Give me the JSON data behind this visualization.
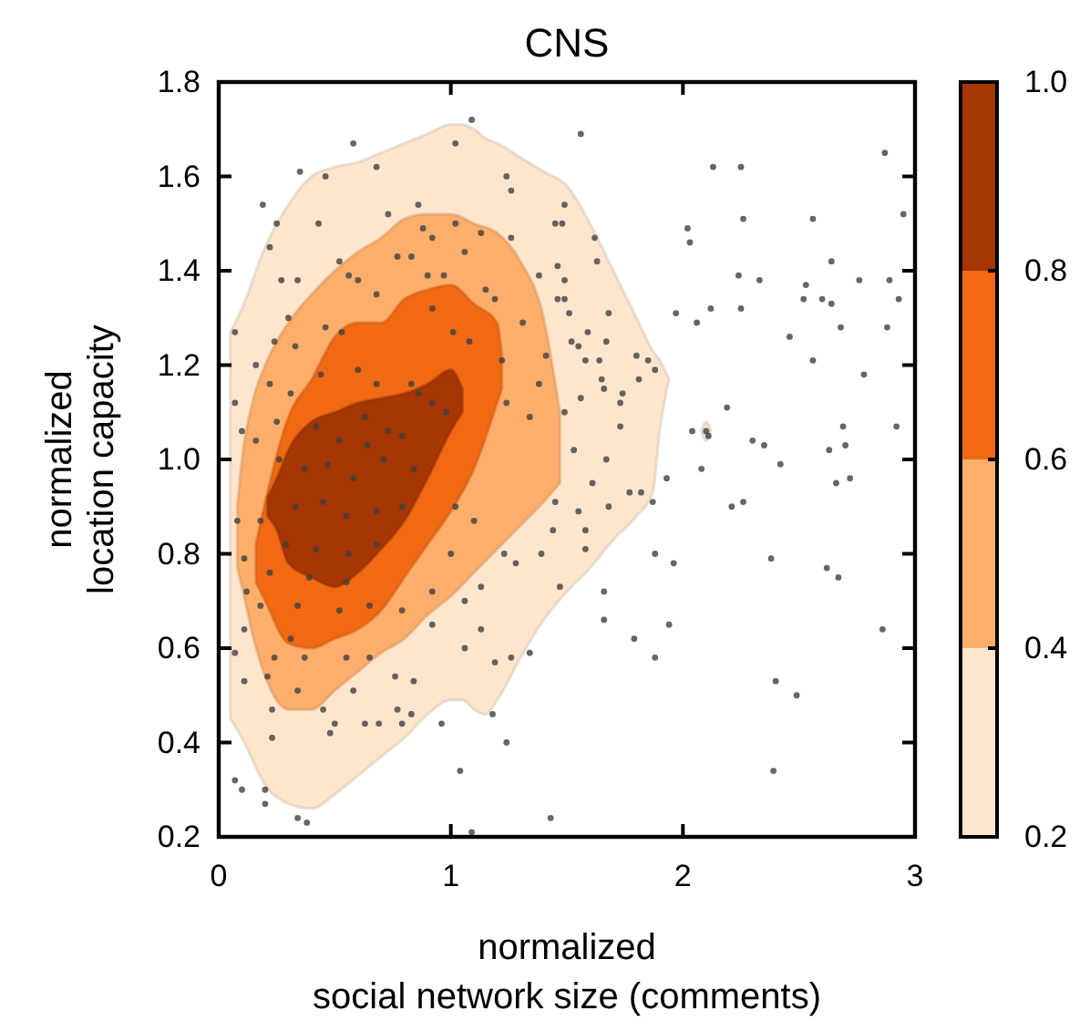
{
  "chart_data": {
    "type": "scatter",
    "title": "CNS",
    "xlabel": "normalized\nsocial network size (comments)",
    "ylabel": "normalized\nlocation capacity",
    "xlim": [
      0,
      3
    ],
    "ylim": [
      0.2,
      1.8
    ],
    "xticks": [
      0,
      1,
      2,
      3
    ],
    "yticks": [
      0.2,
      0.4,
      0.6,
      0.8,
      {
        "value": 1,
        "label": "1.0"
      },
      1.2,
      1.4,
      1.6,
      1.8
    ],
    "clim": [
      0.2,
      1
    ],
    "cticks": [
      0.2,
      0.4,
      0.6,
      0.8,
      {
        "value": 1,
        "label": "1.0"
      }
    ],
    "marker": "circle",
    "series": [
      {
        "type": "area",
        "color": "#fee6ce",
        "x": [
          0.05,
          0.1,
          0.2,
          0.3,
          0.4,
          0.5,
          0.6,
          0.7,
          0.8,
          0.9,
          1.0,
          1.05,
          1.1,
          1.15,
          1.2,
          1.3,
          1.4,
          1.5,
          1.6,
          1.7,
          1.8,
          1.87,
          1.9,
          1.94
        ],
        "values": [
          null,
          null,
          null,
          null,
          null,
          null,
          null,
          null,
          null,
          null,
          null,
          null,
          null,
          null,
          null,
          null,
          null,
          null,
          null,
          null,
          null,
          null,
          null,
          null
        ],
        "lower": [
          0.45,
          0.41,
          0.31,
          0.27,
          0.26,
          0.29,
          0.33,
          0.37,
          0.41,
          0.46,
          0.49,
          0.49,
          0.47,
          0.46,
          0.49,
          0.58,
          0.66,
          0.72,
          0.77,
          0.83,
          0.88,
          0.93,
          1.06,
          1.17
        ],
        "upper": [
          1.27,
          1.32,
          1.45,
          1.54,
          1.6,
          1.62,
          1.63,
          1.65,
          1.67,
          1.69,
          1.71,
          1.71,
          1.7,
          1.68,
          1.67,
          1.64,
          1.61,
          1.58,
          1.5,
          1.4,
          1.3,
          1.23,
          1.21,
          1.17
        ]
      },
      {
        "type": "area",
        "color": "#fee6ce",
        "x": [
          2.08,
          2.1,
          2.12
        ],
        "values": [
          null,
          null,
          null
        ],
        "lower": [
          1.06,
          1.04,
          1.06
        ],
        "upper": [
          1.06,
          1.08,
          1.06
        ]
      },
      {
        "type": "area",
        "color": "#fdae6b",
        "x": [
          0.08,
          0.1,
          0.15,
          0.2,
          0.3,
          0.4,
          0.5,
          0.6,
          0.7,
          0.8,
          0.9,
          1.0,
          1.1,
          1.2,
          1.3,
          1.4,
          1.47
        ],
        "values": [
          null,
          null,
          null,
          null,
          null,
          null,
          null,
          null,
          null,
          null,
          null,
          null,
          null,
          null,
          null,
          null,
          null
        ],
        "lower": [
          0.77,
          0.73,
          0.62,
          0.54,
          0.47,
          0.47,
          0.51,
          0.55,
          0.59,
          0.62,
          0.67,
          0.71,
          0.76,
          0.81,
          0.86,
          0.91,
          0.95
        ],
        "upper": [
          0.9,
          1.0,
          1.13,
          1.2,
          1.29,
          1.35,
          1.4,
          1.44,
          1.47,
          1.51,
          1.52,
          1.52,
          1.5,
          1.48,
          1.42,
          1.3,
          1.1
        ]
      },
      {
        "type": "area",
        "color": "#f16913",
        "x": [
          0.16,
          0.2,
          0.3,
          0.4,
          0.5,
          0.6,
          0.7,
          0.8,
          0.9,
          1.0,
          1.1,
          1.2,
          1.22
        ],
        "values": [
          null,
          null,
          null,
          null,
          null,
          null,
          null,
          null,
          null,
          null,
          null,
          null,
          null
        ],
        "lower": [
          0.74,
          0.7,
          0.61,
          0.6,
          0.62,
          0.64,
          0.68,
          0.75,
          0.82,
          0.89,
          0.98,
          1.12,
          1.15
        ],
        "upper": [
          0.82,
          0.91,
          1.09,
          1.17,
          1.26,
          1.29,
          1.29,
          1.34,
          1.36,
          1.37,
          1.33,
          1.29,
          1.22
        ]
      },
      {
        "type": "area",
        "color": "#a63603",
        "x": [
          0.21,
          0.25,
          0.3,
          0.4,
          0.5,
          0.6,
          0.7,
          0.8,
          0.9,
          1.0,
          1.05
        ],
        "values": [
          null,
          null,
          null,
          null,
          null,
          null,
          null,
          null,
          null,
          null,
          null
        ],
        "lower": [
          0.88,
          0.85,
          0.78,
          0.75,
          0.73,
          0.76,
          0.81,
          0.87,
          0.96,
          1.06,
          1.1
        ],
        "upper": [
          0.92,
          0.96,
          1.02,
          1.08,
          1.1,
          1.12,
          1.13,
          1.14,
          1.16,
          1.19,
          1.15
        ]
      },
      {
        "color": "#404040",
        "x": [
          1.56,
          2.13,
          2.25,
          2.87,
          2.02,
          2.03,
          2.26,
          2.56,
          2.95,
          2.64,
          2.24,
          2.33,
          2.53,
          2.76,
          2.89,
          2.52,
          2.6,
          2.64,
          2.93,
          1.97,
          2.12,
          2.25,
          2.06,
          2.68,
          2.88,
          2.46,
          2.56,
          2.78,
          2.19,
          2.04,
          2.3,
          2.35,
          2.69,
          2.92,
          2.63,
          2.7,
          2.1,
          2.11,
          1.49,
          1.45,
          1.48,
          1.62,
          1.46,
          1.49,
          1.63,
          1.46,
          1.49,
          1.51,
          1.68,
          1.59,
          1.52,
          1.55,
          1.67,
          1.58,
          1.64,
          1.8,
          1.85,
          1.88,
          1.81,
          1.65,
          1.66,
          1.74,
          1.73,
          1.56,
          1.49,
          1.73,
          1.53,
          2.08,
          2.42,
          2.66,
          2.72,
          1.93,
          2.21,
          2.26,
          1.88,
          1.96,
          2.38,
          2.62,
          2.67,
          2.86,
          1.66,
          1.66,
          1.94,
          1.79,
          1.88,
          2.4,
          2.49,
          2.39,
          1.43,
          1.47,
          1.58,
          1.58,
          1.44,
          1.55,
          1.45,
          1.68,
          1.61,
          1.77,
          1.82,
          1.87,
          1.67,
          1.06,
          1.34,
          0.96,
          1.24,
          1.04,
          0.07,
          0.1,
          0.2,
          0.2,
          0.34,
          0.38,
          1.09,
          0.23,
          0.48,
          0.63,
          0.69,
          0.77,
          0.79,
          0.83,
          0.84,
          1.06,
          1.13,
          1.19,
          1.26,
          1.18,
          0.11,
          0.07,
          0.23,
          0.45,
          0.5,
          1.09,
          1.02,
          0.58,
          0.35,
          0.46,
          0.68,
          0.19,
          0.25,
          0.22,
          0.27,
          0.3,
          0.07,
          0.16,
          0.07,
          0.1,
          1.24,
          1.26,
          0.43,
          0.73,
          0.86,
          0.88,
          0.92,
          1.02,
          1.13,
          1.26,
          1.06,
          0.77,
          0.83,
          0.52,
          0.6,
          0.68,
          0.34,
          0.56,
          0.9,
          0.97,
          1.15,
          1.19,
          1.38,
          0.24,
          0.46,
          0.53,
          0.33,
          0.44,
          0.6,
          0.68,
          0.92,
          1.01,
          1.08,
          1.31,
          1.41,
          1.38,
          1.24,
          1.34,
          1.22,
          0.22,
          0.31,
          0.25,
          0.16,
          0.83,
          0.98,
          0.86,
          0.92,
          0.63,
          0.73,
          0.42,
          0.52,
          0.64,
          0.79,
          0.26,
          0.37,
          0.47,
          0.58,
          0.71,
          0.84,
          0.33,
          0.45,
          0.55,
          0.68,
          0.79,
          0.29,
          0.42,
          0.56,
          0.68,
          0.22,
          0.39,
          0.55,
          0.18,
          0.34,
          0.52,
          0.65,
          0.79,
          0.92,
          1.0,
          1.02,
          1.1,
          1.23,
          1.39,
          1.28,
          1.13,
          0.92,
          0.31,
          0.24,
          0.37,
          0.55,
          0.65,
          0.76,
          0.21,
          0.34,
          0.58,
          0.11,
          0.08,
          0.11,
          0.12,
          0.18
        ],
        "values": [
          1.69,
          1.62,
          1.62,
          1.65,
          1.49,
          1.46,
          1.51,
          1.51,
          1.52,
          1.42,
          1.39,
          1.38,
          1.37,
          1.38,
          1.38,
          1.34,
          1.34,
          1.33,
          1.34,
          1.31,
          1.32,
          1.32,
          1.29,
          1.28,
          1.28,
          1.26,
          1.21,
          1.18,
          1.11,
          1.06,
          1.04,
          1.03,
          1.07,
          1.07,
          1.02,
          1.03,
          1.06,
          1.05,
          1.54,
          1.5,
          1.5,
          1.47,
          1.41,
          1.38,
          1.42,
          1.34,
          1.34,
          1.31,
          1.31,
          1.27,
          1.25,
          1.24,
          1.25,
          1.21,
          1.21,
          1.22,
          1.21,
          1.19,
          1.17,
          1.17,
          1.15,
          1.14,
          1.12,
          1.13,
          1.1,
          1.07,
          1.02,
          0.98,
          0.99,
          0.95,
          0.96,
          0.96,
          0.9,
          0.91,
          0.8,
          0.78,
          0.79,
          0.77,
          0.75,
          0.64,
          0.72,
          0.66,
          0.65,
          0.62,
          0.58,
          0.53,
          0.5,
          0.34,
          0.24,
          0.73,
          0.81,
          0.85,
          0.85,
          0.89,
          0.91,
          0.9,
          0.95,
          0.93,
          0.93,
          0.91,
          1.0,
          0.7,
          0.59,
          0.44,
          0.4,
          0.34,
          0.32,
          0.3,
          0.27,
          0.3,
          0.24,
          0.23,
          0.21,
          0.41,
          0.42,
          0.44,
          0.44,
          0.47,
          0.44,
          0.46,
          0.53,
          0.6,
          0.64,
          0.57,
          0.58,
          0.46,
          0.53,
          0.59,
          0.47,
          0.47,
          0.44,
          1.72,
          1.67,
          1.67,
          1.61,
          1.6,
          1.62,
          1.54,
          1.5,
          1.45,
          1.38,
          1.3,
          1.27,
          1.2,
          1.12,
          1.06,
          1.6,
          1.57,
          1.5,
          1.52,
          1.54,
          1.49,
          1.47,
          1.5,
          1.48,
          1.47,
          1.44,
          1.43,
          1.43,
          1.42,
          1.38,
          1.35,
          1.38,
          1.39,
          1.39,
          1.39,
          1.36,
          1.34,
          1.39,
          1.25,
          1.28,
          1.27,
          1.24,
          1.18,
          1.19,
          1.16,
          1.32,
          1.27,
          1.25,
          1.29,
          1.22,
          1.16,
          1.12,
          1.09,
          1.21,
          1.16,
          1.14,
          1.08,
          1.04,
          1.16,
          1.1,
          1.14,
          1.12,
          1.09,
          1.06,
          1.07,
          1.04,
          1.03,
          1.05,
          1.0,
          0.98,
          0.99,
          0.96,
          1.0,
          0.98,
          0.9,
          0.91,
          0.88,
          0.89,
          0.9,
          0.82,
          0.81,
          0.8,
          0.82,
          0.76,
          0.75,
          0.74,
          0.69,
          0.69,
          0.68,
          0.69,
          0.68,
          0.72,
          0.8,
          0.9,
          0.87,
          0.8,
          0.8,
          0.78,
          0.73,
          0.65,
          0.62,
          0.58,
          0.58,
          0.58,
          0.58,
          0.54,
          0.54,
          0.51,
          0.51,
          0.64,
          0.87,
          0.79,
          0.72,
          0.87
        ]
      }
    ]
  }
}
